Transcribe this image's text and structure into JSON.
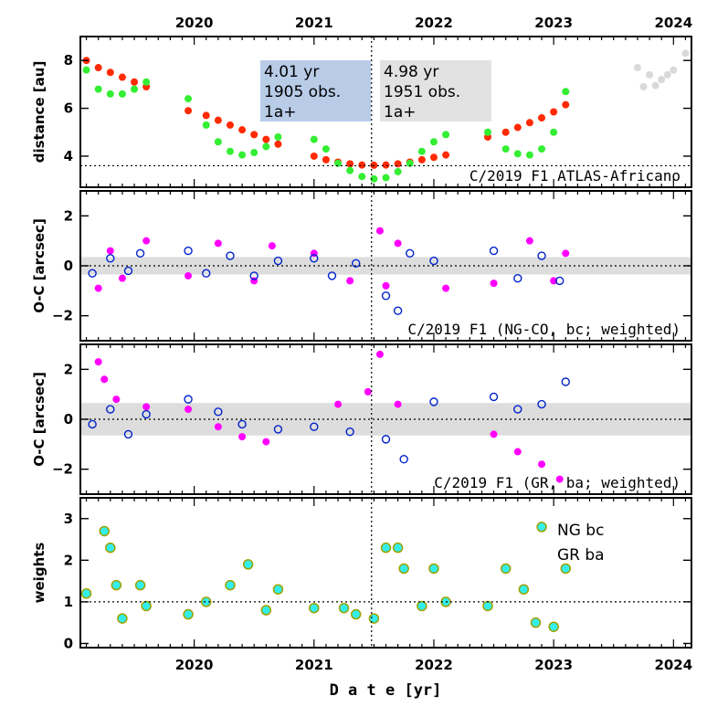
{
  "chart_data": {
    "type": "scatter",
    "xlim": [
      2019.05,
      2024.15
    ],
    "x_ticks": [
      2020,
      2021,
      2022,
      2023,
      2024
    ],
    "x_tick_labels": [
      "2020",
      "2021",
      "2022",
      "2023",
      "2024"
    ],
    "xlabel": "D a t e [yr]",
    "vline_x": 2021.48,
    "panels": [
      {
        "id": "distance",
        "ylabel": "distance [au]",
        "ylim": [
          2.7,
          9.0
        ],
        "y_ticks": [
          4,
          6,
          8
        ],
        "y_tick_labels": [
          "4",
          "6",
          "8"
        ],
        "hline_y": 3.6,
        "label": "C/2019 F1 ATLAS-Africano",
        "boxes": [
          {
            "lines": [
              "4.01 yr",
              "1905 obs.",
              "1a+"
            ],
            "color": "#b8cce8"
          },
          {
            "lines": [
              "4.98 yr",
              "1951 obs.",
              "1a+"
            ],
            "color": "#e2e2e2"
          }
        ],
        "series": [
          {
            "color": "#ff2a00",
            "points": [
              [
                2019.1,
                8.0
              ],
              [
                2019.2,
                7.7
              ],
              [
                2019.3,
                7.5
              ],
              [
                2019.4,
                7.3
              ],
              [
                2019.5,
                7.1
              ],
              [
                2019.6,
                6.9
              ],
              [
                2019.95,
                5.9
              ],
              [
                2020.1,
                5.7
              ],
              [
                2020.2,
                5.5
              ],
              [
                2020.3,
                5.3
              ],
              [
                2020.4,
                5.1
              ],
              [
                2020.5,
                4.9
              ],
              [
                2020.6,
                4.7
              ],
              [
                2020.7,
                4.5
              ],
              [
                2021.0,
                4.0
              ],
              [
                2021.1,
                3.85
              ],
              [
                2021.2,
                3.75
              ],
              [
                2021.3,
                3.68
              ],
              [
                2021.4,
                3.63
              ],
              [
                2021.5,
                3.62
              ],
              [
                2021.6,
                3.63
              ],
              [
                2021.7,
                3.68
              ],
              [
                2021.8,
                3.75
              ],
              [
                2021.9,
                3.85
              ],
              [
                2022.0,
                3.95
              ],
              [
                2022.1,
                4.05
              ],
              [
                2022.45,
                4.8
              ],
              [
                2022.6,
                5.0
              ],
              [
                2022.7,
                5.2
              ],
              [
                2022.8,
                5.4
              ],
              [
                2022.9,
                5.6
              ],
              [
                2023.0,
                5.85
              ],
              [
                2023.1,
                6.15
              ]
            ]
          },
          {
            "color": "#33ee33",
            "points": [
              [
                2019.1,
                7.6
              ],
              [
                2019.2,
                6.8
              ],
              [
                2019.3,
                6.6
              ],
              [
                2019.4,
                6.6
              ],
              [
                2019.5,
                6.8
              ],
              [
                2019.6,
                7.1
              ],
              [
                2019.95,
                6.4
              ],
              [
                2020.1,
                5.3
              ],
              [
                2020.2,
                4.6
              ],
              [
                2020.3,
                4.2
              ],
              [
                2020.4,
                4.05
              ],
              [
                2020.5,
                4.15
              ],
              [
                2020.6,
                4.4
              ],
              [
                2020.7,
                4.8
              ],
              [
                2021.0,
                4.7
              ],
              [
                2021.1,
                4.3
              ],
              [
                2021.2,
                3.7
              ],
              [
                2021.3,
                3.4
              ],
              [
                2021.4,
                3.15
              ],
              [
                2021.5,
                3.05
              ],
              [
                2021.6,
                3.1
              ],
              [
                2021.7,
                3.35
              ],
              [
                2021.8,
                3.7
              ],
              [
                2021.9,
                4.2
              ],
              [
                2022.0,
                4.6
              ],
              [
                2022.1,
                4.9
              ],
              [
                2022.45,
                5.0
              ],
              [
                2022.6,
                4.3
              ],
              [
                2022.7,
                4.1
              ],
              [
                2022.8,
                4.05
              ],
              [
                2022.9,
                4.3
              ],
              [
                2023.0,
                5.0
              ],
              [
                2023.1,
                6.7
              ]
            ]
          },
          {
            "color": "#d9d9d9",
            "points": [
              [
                2023.7,
                7.7
              ],
              [
                2023.8,
                7.4
              ],
              [
                2023.9,
                7.2
              ],
              [
                2024.0,
                7.6
              ],
              [
                2024.1,
                8.3
              ],
              [
                2023.75,
                6.9
              ],
              [
                2023.85,
                6.95
              ],
              [
                2023.95,
                7.4
              ]
            ]
          }
        ]
      },
      {
        "id": "oc-ngco",
        "ylabel": "O-C [arcsec]",
        "ylim": [
          -3.0,
          3.0
        ],
        "y_ticks": [
          -2,
          0,
          2
        ],
        "y_tick_labels": [
          "−2",
          "0",
          "2"
        ],
        "band": [
          -0.35,
          0.35
        ],
        "hline_y": 0,
        "label": "C/2019 F1 (NG-CO, bc; weighted)",
        "series": [
          {
            "color": "#ff00ff",
            "filled": true,
            "points": [
              [
                2019.2,
                -0.9
              ],
              [
                2019.3,
                0.6
              ],
              [
                2019.4,
                -0.5
              ],
              [
                2019.6,
                1.0
              ],
              [
                2019.95,
                -0.4
              ],
              [
                2020.2,
                0.9
              ],
              [
                2020.5,
                -0.6
              ],
              [
                2020.65,
                0.8
              ],
              [
                2021.0,
                0.5
              ],
              [
                2021.3,
                -0.6
              ],
              [
                2021.55,
                1.4
              ],
              [
                2021.6,
                -0.8
              ],
              [
                2021.7,
                0.9
              ],
              [
                2022.1,
                -0.9
              ],
              [
                2022.5,
                -0.7
              ],
              [
                2022.8,
                1.0
              ],
              [
                2023.0,
                -0.6
              ],
              [
                2023.1,
                0.5
              ]
            ]
          },
          {
            "color": "#0022cc",
            "filled": false,
            "points": [
              [
                2019.15,
                -0.3
              ],
              [
                2019.3,
                0.3
              ],
              [
                2019.45,
                -0.2
              ],
              [
                2019.55,
                0.5
              ],
              [
                2019.95,
                0.6
              ],
              [
                2020.1,
                -0.3
              ],
              [
                2020.3,
                0.4
              ],
              [
                2020.5,
                -0.4
              ],
              [
                2020.7,
                0.2
              ],
              [
                2021.0,
                0.3
              ],
              [
                2021.15,
                -0.4
              ],
              [
                2021.35,
                0.1
              ],
              [
                2021.6,
                -1.2
              ],
              [
                2021.7,
                -1.8
              ],
              [
                2021.8,
                0.5
              ],
              [
                2022.0,
                0.2
              ],
              [
                2022.5,
                0.6
              ],
              [
                2022.7,
                -0.5
              ],
              [
                2022.9,
                0.4
              ],
              [
                2023.05,
                -0.6
              ]
            ]
          }
        ]
      },
      {
        "id": "oc-grba",
        "ylabel": "O-C [arcsec]",
        "ylim": [
          -3.0,
          3.0
        ],
        "y_ticks": [
          -2,
          0,
          2
        ],
        "y_tick_labels": [
          "−2",
          "0",
          "2"
        ],
        "band": [
          -0.65,
          0.65
        ],
        "hline_y": 0,
        "label": "C/2019 F1 (GR, ba; weighted)",
        "series": [
          {
            "color": "#ff00ff",
            "filled": true,
            "points": [
              [
                2019.2,
                2.3
              ],
              [
                2019.25,
                1.6
              ],
              [
                2019.35,
                0.8
              ],
              [
                2019.6,
                0.5
              ],
              [
                2019.95,
                0.4
              ],
              [
                2020.2,
                -0.3
              ],
              [
                2020.4,
                -0.7
              ],
              [
                2020.6,
                -0.9
              ],
              [
                2021.2,
                0.6
              ],
              [
                2021.45,
                1.1
              ],
              [
                2021.55,
                2.6
              ],
              [
                2021.7,
                0.6
              ],
              [
                2022.5,
                -0.6
              ],
              [
                2022.7,
                -1.3
              ],
              [
                2022.9,
                -1.8
              ],
              [
                2023.05,
                -2.4
              ]
            ]
          },
          {
            "color": "#0022cc",
            "filled": false,
            "points": [
              [
                2019.15,
                -0.2
              ],
              [
                2019.3,
                0.4
              ],
              [
                2019.45,
                -0.6
              ],
              [
                2019.6,
                0.2
              ],
              [
                2019.95,
                0.8
              ],
              [
                2020.2,
                0.3
              ],
              [
                2020.4,
                -0.2
              ],
              [
                2020.7,
                -0.4
              ],
              [
                2021.0,
                -0.3
              ],
              [
                2021.3,
                -0.5
              ],
              [
                2021.6,
                -0.8
              ],
              [
                2021.75,
                -1.6
              ],
              [
                2022.0,
                0.7
              ],
              [
                2022.5,
                0.9
              ],
              [
                2022.7,
                0.4
              ],
              [
                2022.9,
                0.6
              ],
              [
                2023.1,
                1.5
              ]
            ]
          }
        ]
      },
      {
        "id": "weights",
        "ylabel": "weights",
        "ylim": [
          -0.1,
          3.5
        ],
        "y_ticks": [
          0,
          1,
          2,
          3
        ],
        "y_tick_labels": [
          "0",
          "1",
          "2",
          "3"
        ],
        "hline_y": 1,
        "legend": [
          {
            "name": "NG bc",
            "color": "#a0a000"
          },
          {
            "name": "GR ba",
            "color": "#22ffee"
          }
        ],
        "series": [
          {
            "color": "#33eeee",
            "edge": "#a0a000",
            "points": [
              [
                2019.1,
                1.2
              ],
              [
                2019.25,
                2.7
              ],
              [
                2019.3,
                2.3
              ],
              [
                2019.35,
                1.4
              ],
              [
                2019.4,
                0.6
              ],
              [
                2019.55,
                1.4
              ],
              [
                2019.6,
                0.9
              ],
              [
                2019.95,
                0.7
              ],
              [
                2020.1,
                1.0
              ],
              [
                2020.3,
                1.4
              ],
              [
                2020.45,
                1.9
              ],
              [
                2020.6,
                0.8
              ],
              [
                2020.7,
                1.3
              ],
              [
                2021.0,
                0.85
              ],
              [
                2021.25,
                0.85
              ],
              [
                2021.35,
                0.7
              ],
              [
                2021.5,
                0.6
              ],
              [
                2021.6,
                2.3
              ],
              [
                2021.7,
                2.3
              ],
              [
                2021.75,
                1.8
              ],
              [
                2021.9,
                0.9
              ],
              [
                2022.0,
                1.8
              ],
              [
                2022.1,
                1.0
              ],
              [
                2022.45,
                0.9
              ],
              [
                2022.6,
                1.8
              ],
              [
                2022.75,
                1.3
              ],
              [
                2022.85,
                0.5
              ],
              [
                2022.9,
                2.8
              ],
              [
                2023.0,
                0.4
              ],
              [
                2023.1,
                1.8
              ]
            ]
          }
        ]
      }
    ]
  }
}
